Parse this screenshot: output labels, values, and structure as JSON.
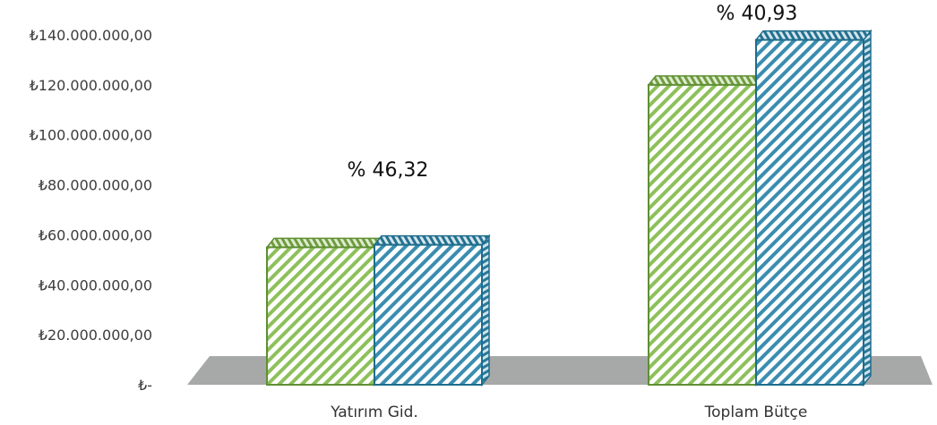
{
  "chart_data": {
    "type": "bar",
    "categories": [
      "Yatırım Gid.",
      "Toplam Bütçe"
    ],
    "series": [
      {
        "values": [
          55000000,
          120000000
        ]
      },
      {
        "values": [
          56000000,
          138000000
        ]
      }
    ],
    "ylim": [
      0,
      140000000
    ],
    "y_ticks": [
      0,
      20000000,
      40000000,
      60000000,
      80000000,
      100000000,
      120000000,
      140000000
    ],
    "y_tick_labels": [
      "₺-",
      "₺20.000.000,00",
      "₺40.000.000,00",
      "₺60.000.000,00",
      "₺80.000.000,00",
      "₺100.000.000,00",
      "₺120.000.000,00",
      "₺140.000.000,00"
    ],
    "annotations": [
      "% 46,32",
      "% 40,93"
    ],
    "grid": false,
    "legend": "none",
    "style": "3d-column",
    "colors": {
      "series1": "#7fb24a",
      "series2": "#2f7fa0",
      "floor": "#a7a9a8"
    }
  }
}
